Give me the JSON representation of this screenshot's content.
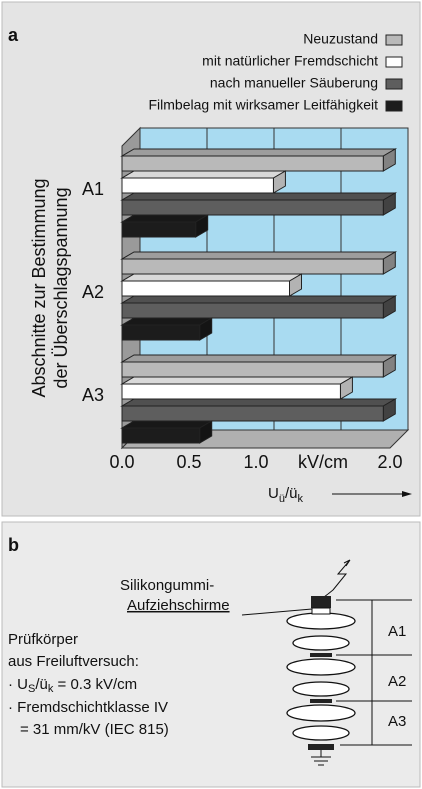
{
  "chart_data": {
    "type": "bar",
    "panel_label": "a",
    "categories": [
      "A1",
      "A2",
      "A3"
    ],
    "series": [
      {
        "name": "Neuzustand",
        "color": "#b9b9b9",
        "values": [
          1.95,
          1.95,
          1.95
        ]
      },
      {
        "name": "mit natürlicher Fremdschicht",
        "color": "#ffffff",
        "values": [
          1.13,
          1.25,
          1.63
        ]
      },
      {
        "name": "nach manueller Säuberung",
        "color": "#5e5e5e",
        "values": [
          1.95,
          1.95,
          1.95
        ]
      },
      {
        "name": "Filmbelag mit wirksamer Leitfähigkeit",
        "color": "#1c1c1c",
        "values": [
          0.55,
          0.58,
          0.58
        ]
      }
    ],
    "xlim": [
      0,
      2
    ],
    "xticks": [
      {
        "value": 0,
        "label": "0.0"
      },
      {
        "value": 0.5,
        "label": "0.5"
      },
      {
        "value": 1,
        "label": "1.0"
      },
      {
        "value": 1.5,
        "label": "kV/cm"
      },
      {
        "value": 2,
        "label": "2.0"
      }
    ],
    "grid": true,
    "x_label_parts": [
      "U",
      "ü",
      "/ü",
      "k"
    ],
    "y_label_lines": [
      "Abschnitte zur Bestimmung",
      "der Überschlagspannung"
    ]
  },
  "diagram": {
    "panel_label": "b",
    "material_lines": [
      "Silikongummi-",
      "Aufziehschirme"
    ],
    "specimen_lines": [
      "Prüfkörper",
      "aus Freiluftversuch:"
    ],
    "bullet1_parts": [
      "· U",
      "S",
      "/ü",
      "k",
      " = 0.3 kV/cm"
    ],
    "bullet2_lines": [
      "· Fremdschichtklasse IV",
      "= 31 mm/kV (IEC 815)"
    ],
    "sections": [
      "A1",
      "A2",
      "A3"
    ]
  }
}
